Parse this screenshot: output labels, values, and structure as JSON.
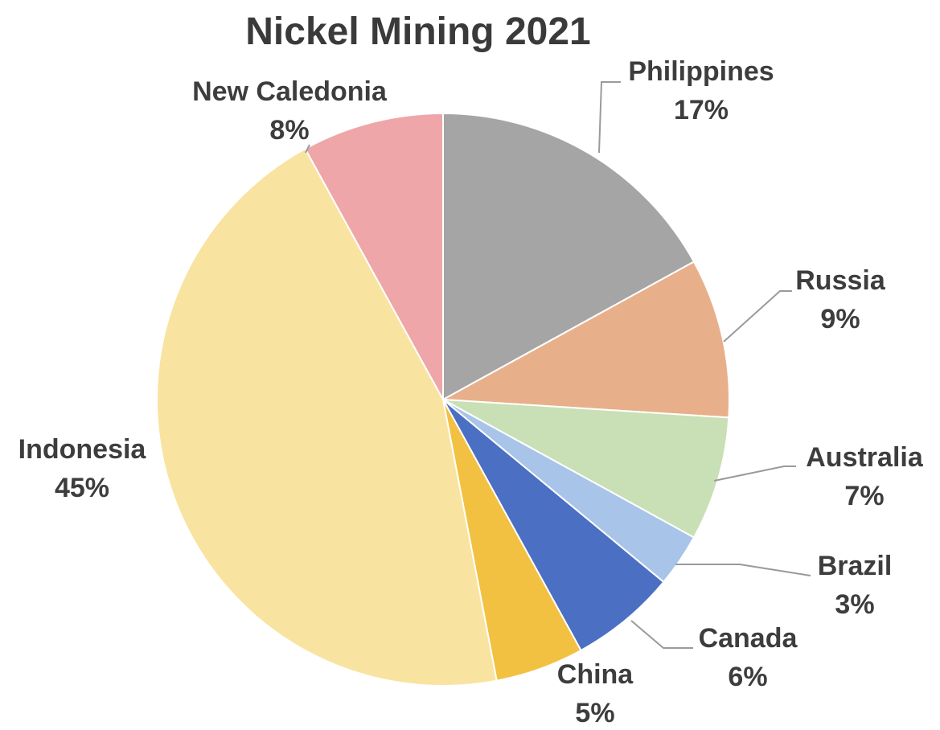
{
  "chart_data": {
    "type": "pie",
    "title": "Nickel Mining 2021",
    "slices": [
      {
        "label": "Philippines",
        "value": 17,
        "value_label": "17%",
        "color": "#a5a5a5"
      },
      {
        "label": "Russia",
        "value": 9,
        "value_label": "9%",
        "color": "#e8b08a"
      },
      {
        "label": "Australia",
        "value": 7,
        "value_label": "7%",
        "color": "#c9dfb6"
      },
      {
        "label": "Brazil",
        "value": 3,
        "value_label": "3%",
        "color": "#a8c4e8"
      },
      {
        "label": "Canada",
        "value": 6,
        "value_label": "6%",
        "color": "#4a6fc3"
      },
      {
        "label": "China",
        "value": 5,
        "value_label": "5%",
        "color": "#f2c142"
      },
      {
        "label": "Indonesia",
        "value": 45,
        "value_label": "45%",
        "color": "#f9e3a0"
      },
      {
        "label": "New Caledonia",
        "value": 8,
        "value_label": "8%",
        "color": "#eea6a8"
      }
    ],
    "legend": "none",
    "data_labels": "outside with leader lines"
  }
}
